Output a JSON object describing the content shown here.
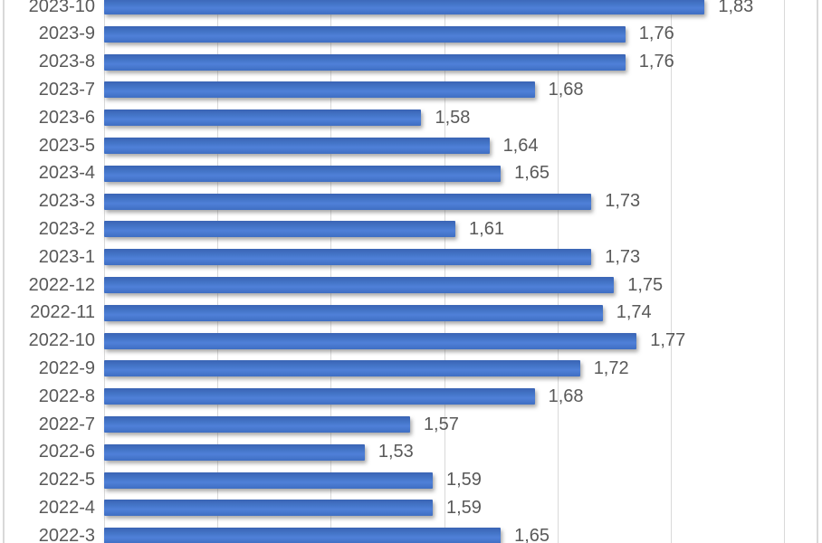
{
  "chart": {
    "text_color": "#595959",
    "gridline_color": "#D9D9D9",
    "axis_color": "#D9D9D9",
    "border_color": "#D9D9D9",
    "background": "#FFFFFF"
  },
  "chart_data": {
    "type": "bar",
    "orientation": "horizontal",
    "title": "",
    "xlabel": "",
    "ylabel": "",
    "legend": "none",
    "grid": true,
    "xlim": [
      1.3,
      1.9
    ],
    "gridline_step": 0.1,
    "decimal_separator": ",",
    "bar_color": "#4472C4",
    "data_labels": true,
    "categories": [
      "2023-10",
      "2023-9",
      "2023-8",
      "2023-7",
      "2023-6",
      "2023-5",
      "2023-4",
      "2023-3",
      "2023-2",
      "2023-1",
      "2022-12",
      "2022-11",
      "2022-10",
      "2022-9",
      "2022-8",
      "2022-7",
      "2022-6",
      "2022-5",
      "2022-4",
      "2022-3"
    ],
    "series": [
      {
        "name": "value",
        "values": [
          1.83,
          1.76,
          1.76,
          1.68,
          1.58,
          1.64,
          1.65,
          1.73,
          1.61,
          1.73,
          1.75,
          1.74,
          1.77,
          1.72,
          1.68,
          1.57,
          1.53,
          1.59,
          1.59,
          1.65
        ],
        "value_labels": [
          "1,83",
          "1,76",
          "1,76",
          "1,68",
          "1,58",
          "1,64",
          "1,65",
          "1,73",
          "1,61",
          "1,73",
          "1,75",
          "1,74",
          "1,77",
          "1,72",
          "1,68",
          "1,57",
          "1,53",
          "1,59",
          "1,59",
          "1,65"
        ]
      }
    ]
  }
}
